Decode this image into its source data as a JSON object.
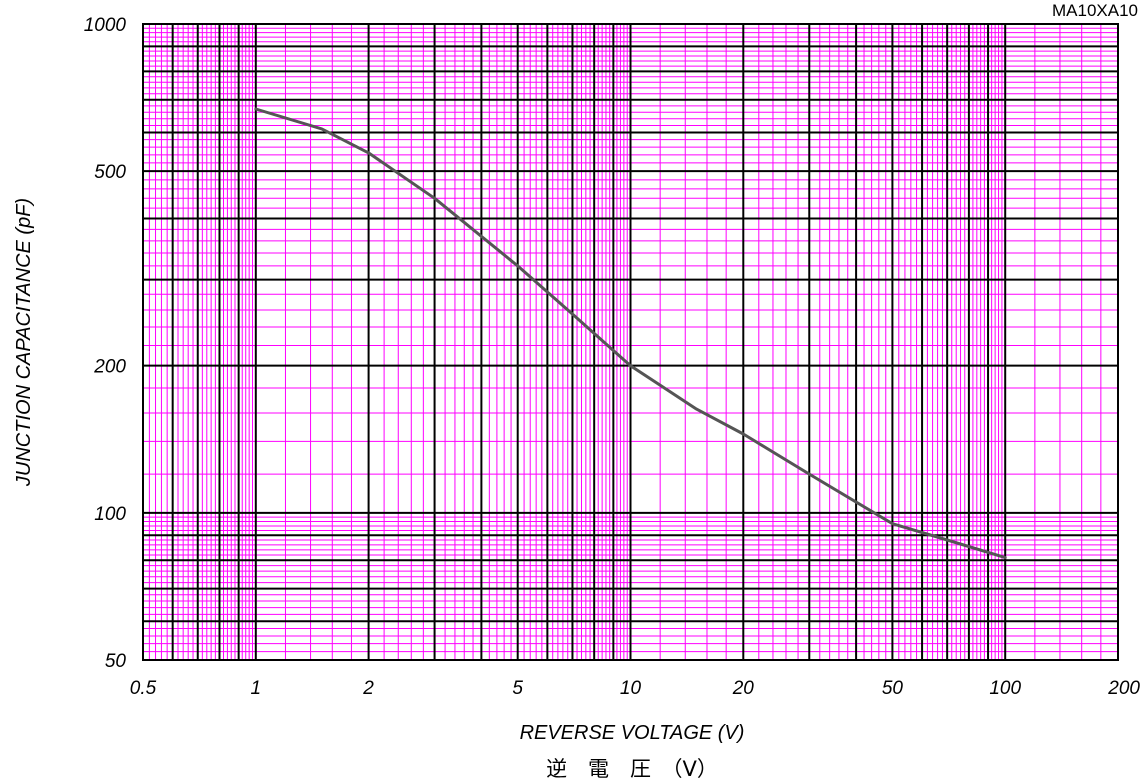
{
  "chart_data": {
    "type": "line",
    "model": "MA10XA10",
    "xlabel": "REVERSE VOLTAGE (V)",
    "xlabel_jp": "逆　電　圧　（V）",
    "ylabel": "JUNCTION CAPACITANCE (pF)",
    "x_scale": "log",
    "y_scale": "log",
    "xlim": [
      0.5,
      200
    ],
    "ylim": [
      50,
      1000
    ],
    "x_ticks": [
      {
        "value": 0.5,
        "label": "0.5"
      },
      {
        "value": 1,
        "label": "1"
      },
      {
        "value": 2,
        "label": "2"
      },
      {
        "value": 5,
        "label": "5"
      },
      {
        "value": 10,
        "label": "10"
      },
      {
        "value": 20,
        "label": "20"
      },
      {
        "value": 50,
        "label": "50"
      },
      {
        "value": 100,
        "label": "100"
      },
      {
        "value": 200,
        "label": "200"
      }
    ],
    "y_ticks": [
      {
        "value": 50,
        "label": "50"
      },
      {
        "value": 100,
        "label": "100"
      },
      {
        "value": 200,
        "label": "200"
      },
      {
        "value": 500,
        "label": "500"
      },
      {
        "value": 1000,
        "label": "1000"
      }
    ],
    "grid": true,
    "colors": {
      "major_grid": "#000000",
      "minor_grid": "#ff00ff",
      "curve": "#555555"
    },
    "series": [
      {
        "x": [
          1,
          1.5,
          2,
          3,
          5,
          7,
          10,
          15,
          20,
          30,
          50,
          70,
          100
        ],
        "y": [
          670,
          610,
          545,
          440,
          320,
          255,
          200,
          163,
          145,
          120,
          95,
          88,
          81
        ]
      }
    ]
  }
}
